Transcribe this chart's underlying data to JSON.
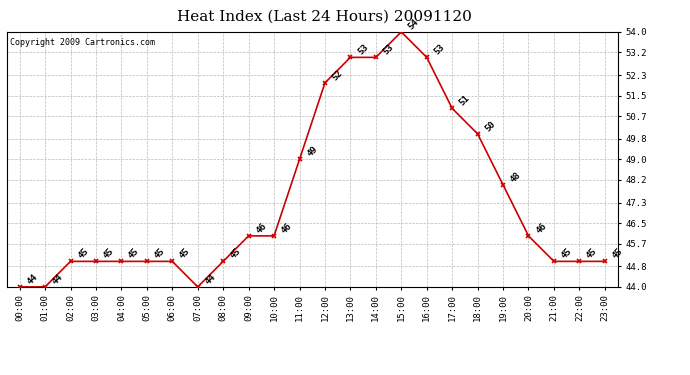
{
  "title": "Heat Index (Last 24 Hours) 20091120",
  "copyright_text": "Copyright 2009 Cartronics.com",
  "hours": [
    "00:00",
    "01:00",
    "02:00",
    "03:00",
    "04:00",
    "05:00",
    "06:00",
    "07:00",
    "08:00",
    "09:00",
    "10:00",
    "11:00",
    "12:00",
    "13:00",
    "14:00",
    "15:00",
    "16:00",
    "17:00",
    "18:00",
    "19:00",
    "20:00",
    "21:00",
    "22:00",
    "23:00"
  ],
  "values": [
    44,
    44,
    45,
    45,
    45,
    45,
    45,
    44,
    45,
    46,
    46,
    49,
    52,
    53,
    53,
    54,
    53,
    51,
    50,
    48,
    46,
    45,
    45,
    45
  ],
  "line_color": "#cc0000",
  "background_color": "#ffffff",
  "grid_color": "#bbbbbb",
  "ylim_min": 44.0,
  "ylim_max": 54.0,
  "yticks": [
    44.0,
    44.8,
    45.7,
    46.5,
    47.3,
    48.2,
    49.0,
    49.8,
    50.7,
    51.5,
    52.3,
    53.2,
    54.0
  ],
  "title_fontsize": 11,
  "tick_fontsize": 6.5,
  "annotation_fontsize": 6.5,
  "copyright_fontsize": 6
}
